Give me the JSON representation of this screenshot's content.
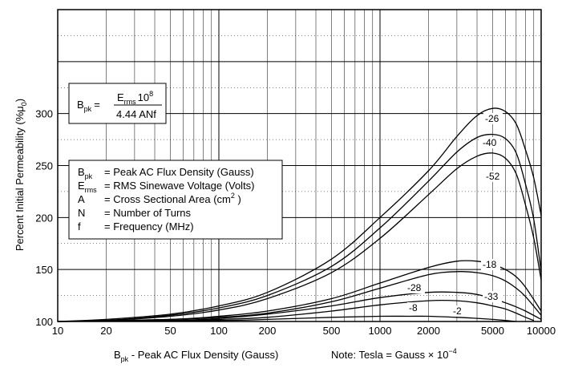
{
  "chart_data": {
    "type": "line",
    "xscale": "log",
    "xlim": [
      10,
      10000
    ],
    "ylim": [
      100,
      400
    ],
    "grid": true,
    "title": "",
    "xlabel": "B_pk - Peak AC Flux Density (Gauss)",
    "xlabel_parts": {
      "main": "B",
      "sub": "pk",
      "rest": " - Peak AC Flux Density (Gauss)"
    },
    "ylabel": "Percent Initial Permeability (%μ0)",
    "ylabel_parts": {
      "main": "Percent Initial Permeability (%μ",
      "sub": "0",
      "end": ")"
    },
    "note": {
      "main": "Note: Tesla = Gauss × 10",
      "sup": "−4"
    },
    "x_ticks": [
      10,
      20,
      50,
      100,
      200,
      500,
      1000,
      2000,
      5000,
      10000
    ],
    "x_tick_labels": [
      "10",
      "20",
      "50",
      "100",
      "200",
      "500",
      "1000",
      "2000",
      "5000",
      "10000"
    ],
    "y_ticks": [
      100,
      150,
      200,
      250,
      300
    ],
    "y_tick_labels": [
      "100",
      "150",
      "200",
      "250",
      "300"
    ],
    "formula_box": {
      "lhs_main": "B",
      "lhs_sub": "pk",
      "eq": "=",
      "num_main": "E",
      "num_sub": "rms",
      "num_after": "10",
      "num_sup": "8",
      "den": "4.44 ANf"
    },
    "legend_box": {
      "lines": [
        {
          "sym": "B",
          "sub": "pk",
          "text": "= Peak AC Flux Density (Gauss)",
          "sup": "",
          "tail": ""
        },
        {
          "sym": "E",
          "sub": "rms",
          "text": "= RMS Sinewave Voltage (Volts)",
          "sup": "",
          "tail": ""
        },
        {
          "sym": "A",
          "sub": "",
          "text": "= Cross Sectional Area (cm",
          "sup": "2",
          "tail": " )"
        },
        {
          "sym": "N",
          "sub": "",
          "text": "= Number of Turns",
          "sup": "",
          "tail": ""
        },
        {
          "sym": "f",
          "sub": "",
          "text": "= Frequency (MHz)",
          "sup": "",
          "tail": ""
        }
      ]
    },
    "series": [
      {
        "name": "-26",
        "points": [
          [
            10,
            100
          ],
          [
            20,
            102
          ],
          [
            50,
            107
          ],
          [
            100,
            115
          ],
          [
            200,
            128
          ],
          [
            500,
            160
          ],
          [
            1000,
            200
          ],
          [
            2000,
            245
          ],
          [
            3000,
            278
          ],
          [
            4000,
            298
          ],
          [
            5000,
            305
          ],
          [
            6000,
            302
          ],
          [
            7000,
            290
          ],
          [
            8000,
            265
          ],
          [
            9000,
            238
          ],
          [
            10000,
            202
          ]
        ]
      },
      {
        "name": "-40",
        "points": [
          [
            10,
            100
          ],
          [
            20,
            101
          ],
          [
            50,
            106
          ],
          [
            100,
            113
          ],
          [
            200,
            125
          ],
          [
            500,
            153
          ],
          [
            1000,
            190
          ],
          [
            2000,
            235
          ],
          [
            3000,
            263
          ],
          [
            4000,
            277
          ],
          [
            5000,
            280
          ],
          [
            6000,
            276
          ],
          [
            7000,
            262
          ],
          [
            8000,
            232
          ],
          [
            9000,
            198
          ],
          [
            10000,
            148
          ]
        ]
      },
      {
        "name": "-52",
        "points": [
          [
            10,
            100
          ],
          [
            20,
            101
          ],
          [
            50,
            105
          ],
          [
            100,
            111
          ],
          [
            200,
            122
          ],
          [
            500,
            147
          ],
          [
            1000,
            180
          ],
          [
            2000,
            222
          ],
          [
            3000,
            247
          ],
          [
            4000,
            259
          ],
          [
            5000,
            262
          ],
          [
            6000,
            257
          ],
          [
            7000,
            242
          ],
          [
            8000,
            212
          ],
          [
            9000,
            180
          ],
          [
            10000,
            140
          ]
        ]
      },
      {
        "name": "-18",
        "points": [
          [
            10,
            100
          ],
          [
            50,
            102
          ],
          [
            100,
            105
          ],
          [
            200,
            110
          ],
          [
            500,
            122
          ],
          [
            1000,
            137
          ],
          [
            2000,
            152
          ],
          [
            3000,
            158
          ],
          [
            4000,
            158
          ],
          [
            5000,
            155
          ],
          [
            6000,
            150
          ],
          [
            7000,
            143
          ],
          [
            8000,
            133
          ],
          [
            10000,
            110
          ]
        ]
      },
      {
        "name": "-28",
        "points": [
          [
            10,
            100
          ],
          [
            50,
            102
          ],
          [
            100,
            104
          ],
          [
            200,
            108
          ],
          [
            500,
            119
          ],
          [
            1000,
            132
          ],
          [
            2000,
            145
          ],
          [
            3000,
            148
          ],
          [
            4000,
            147
          ],
          [
            5000,
            144
          ],
          [
            6000,
            139
          ],
          [
            7000,
            132
          ],
          [
            8000,
            124
          ],
          [
            10000,
            106
          ]
        ]
      },
      {
        "name": "-33",
        "points": [
          [
            10,
            100
          ],
          [
            50,
            101
          ],
          [
            100,
            103
          ],
          [
            200,
            107
          ],
          [
            500,
            115
          ],
          [
            1000,
            123
          ],
          [
            2000,
            128
          ],
          [
            3000,
            128
          ],
          [
            4000,
            126
          ],
          [
            5000,
            122
          ],
          [
            6000,
            118
          ],
          [
            7000,
            114
          ],
          [
            8000,
            110
          ],
          [
            10000,
            102
          ]
        ]
      },
      {
        "name": "-8",
        "points": [
          [
            10,
            100
          ],
          [
            50,
            101
          ],
          [
            100,
            102
          ],
          [
            200,
            104
          ],
          [
            500,
            110
          ],
          [
            1000,
            116
          ],
          [
            2000,
            120
          ],
          [
            3000,
            120
          ],
          [
            4000,
            118
          ],
          [
            5000,
            115
          ],
          [
            6000,
            112
          ],
          [
            7000,
            108
          ],
          [
            8000,
            104
          ],
          [
            9000,
            101
          ]
        ]
      },
      {
        "name": "-2",
        "points": [
          [
            10,
            100
          ],
          [
            100,
            101
          ],
          [
            200,
            102
          ],
          [
            500,
            104
          ],
          [
            1000,
            105
          ],
          [
            1500,
            105
          ],
          [
            2000,
            105
          ],
          [
            3000,
            104
          ],
          [
            4000,
            103
          ],
          [
            5000,
            102
          ],
          [
            6000,
            101
          ],
          [
            7000,
            100
          ]
        ]
      }
    ]
  }
}
